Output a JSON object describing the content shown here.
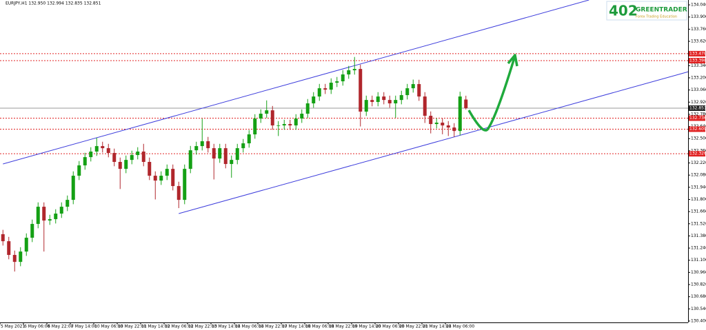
{
  "chart_data": {
    "type": "candlestick",
    "title": "EURJPY,H1  132.950 132.994 132.835 132.851",
    "x_labels": [
      "5 May 2021",
      "6 May 06:00",
      "6 May 22:00",
      "7 May 14:00",
      "10 May 06:00",
      "10 May 22:00",
      "11 May 14:00",
      "12 May 06:00",
      "12 May 22:00",
      "13 May 14:00",
      "14 May 06:00",
      "14 May 22:00",
      "17 May 14:00",
      "18 May 06:00",
      "18 May 22:00",
      "19 May 14:00",
      "20 May 06:00",
      "20 May 22:00",
      "21 May 14:00",
      "24 May 06:00"
    ],
    "up_color": "#14a014",
    "down_color": "#b0262c",
    "open": [
      131.4,
      131.319,
      131.161,
      131.081,
      131.2,
      131.359,
      131.518,
      131.716,
      131.557,
      131.573,
      131.637,
      131.716,
      131.795,
      132.073,
      132.192,
      132.287,
      132.351,
      132.414,
      132.39,
      132.335,
      132.232,
      132.152,
      132.255,
      132.311,
      132.351,
      132.232,
      132.073,
      132.017,
      132.073,
      132.152,
      131.954,
      131.795,
      132.152,
      132.366,
      132.414,
      132.47,
      132.39,
      132.271,
      132.39,
      132.208,
      132.255,
      132.39,
      132.446,
      132.549,
      132.731,
      132.787,
      132.826,
      132.652,
      132.652,
      132.668,
      132.652,
      132.731,
      132.787,
      132.906,
      132.985,
      133.08,
      133.064,
      133.144,
      133.16,
      133.239,
      133.287,
      133.302,
      132.811,
      132.945,
      132.922,
      132.985,
      132.945,
      132.906,
      132.945,
      133.001,
      133.08,
      133.128,
      132.985,
      132.763,
      132.668,
      132.684,
      132.652,
      132.628,
      132.588,
      132.95
    ],
    "high": [
      131.45,
      131.369,
      131.211,
      131.25,
      131.409,
      131.568,
      131.766,
      131.766,
      131.623,
      131.687,
      131.766,
      131.845,
      132.123,
      132.242,
      132.337,
      132.401,
      132.51,
      132.464,
      132.44,
      132.385,
      132.282,
      132.305,
      132.361,
      132.401,
      132.44,
      132.282,
      132.123,
      132.123,
      132.202,
      132.202,
      132.004,
      132.202,
      132.416,
      132.464,
      132.73,
      132.52,
      132.44,
      132.44,
      132.44,
      132.305,
      132.44,
      132.496,
      132.599,
      132.781,
      132.837,
      132.94,
      132.876,
      132.702,
      132.718,
      132.718,
      132.781,
      132.837,
      132.956,
      133.035,
      133.13,
      133.13,
      133.194,
      133.21,
      133.289,
      133.337,
      133.44,
      133.352,
      132.995,
      132.995,
      133.035,
      133.035,
      132.995,
      132.995,
      133.051,
      133.13,
      133.18,
      133.178,
      133.035,
      132.813,
      132.734,
      132.734,
      132.702,
      132.678,
      133.04,
      132.994
    ],
    "low": [
      131.269,
      131.111,
      130.97,
      131.031,
      131.15,
      131.309,
      131.468,
      131.2,
      131.507,
      131.523,
      131.587,
      131.666,
      131.745,
      132.023,
      132.142,
      132.237,
      132.301,
      132.34,
      132.285,
      132.182,
      131.92,
      132.102,
      132.205,
      132.261,
      132.182,
      132.023,
      131.8,
      131.967,
      132.023,
      131.904,
      131.7,
      131.745,
      132.102,
      132.316,
      132.364,
      132.34,
      132.03,
      132.221,
      132.158,
      132.05,
      132.205,
      132.34,
      132.396,
      132.499,
      132.681,
      132.737,
      132.602,
      132.53,
      132.602,
      132.602,
      132.602,
      132.681,
      132.737,
      132.856,
      132.935,
      133.014,
      133.014,
      133.094,
      133.11,
      133.189,
      133.237,
      132.64,
      132.761,
      132.872,
      132.872,
      132.895,
      132.856,
      132.74,
      132.895,
      132.951,
      133.03,
      132.935,
      132.68,
      132.56,
      132.618,
      132.55,
      132.53,
      132.52,
      132.538,
      132.835
    ],
    "close": [
      131.319,
      131.161,
      131.081,
      131.2,
      131.359,
      131.518,
      131.716,
      131.557,
      131.573,
      131.637,
      131.716,
      131.795,
      132.073,
      132.192,
      132.287,
      132.351,
      132.414,
      132.39,
      132.335,
      132.232,
      132.152,
      132.255,
      132.311,
      132.351,
      132.232,
      132.073,
      132.017,
      132.073,
      132.152,
      131.954,
      131.795,
      132.152,
      132.366,
      132.414,
      132.47,
      132.39,
      132.271,
      132.39,
      132.208,
      132.255,
      132.39,
      132.446,
      132.549,
      132.731,
      132.787,
      132.826,
      132.652,
      132.652,
      132.668,
      132.652,
      132.731,
      132.787,
      132.906,
      132.985,
      133.08,
      133.064,
      133.144,
      133.16,
      133.239,
      133.287,
      133.302,
      132.811,
      132.945,
      132.922,
      132.985,
      132.945,
      132.906,
      132.945,
      133.001,
      133.08,
      133.128,
      132.985,
      132.763,
      132.668,
      132.684,
      132.652,
      132.628,
      132.588,
      132.985,
      132.851
    ],
    "ylim": [
      130.384,
      134.096
    ],
    "yticks": [
      {
        "value": 134.04,
        "label": "134.040"
      },
      {
        "value": 133.9,
        "label": "133.900"
      },
      {
        "value": 133.76,
        "label": "133.760"
      },
      {
        "value": 133.62,
        "label": "133.620"
      },
      {
        "value": 133.48,
        "label": "133.480"
      },
      {
        "value": 133.34,
        "label": "133.340"
      },
      {
        "value": 133.2,
        "label": "133.200"
      },
      {
        "value": 133.06,
        "label": "133.060"
      },
      {
        "value": 132.92,
        "label": "132.920"
      },
      {
        "value": 132.78,
        "label": "132.780"
      },
      {
        "value": 132.64,
        "label": "132.640"
      },
      {
        "value": 132.5,
        "label": "132.500"
      },
      {
        "value": 132.36,
        "label": "132.360"
      },
      {
        "value": 132.22,
        "label": "132.220"
      },
      {
        "value": 132.08,
        "label": "132.080"
      },
      {
        "value": 131.94,
        "label": "131.940"
      },
      {
        "value": 131.8,
        "label": "131.800"
      },
      {
        "value": 131.66,
        "label": "131.660"
      },
      {
        "value": 131.52,
        "label": "131.520"
      },
      {
        "value": 131.38,
        "label": "131.380"
      },
      {
        "value": 131.24,
        "label": "131.240"
      },
      {
        "value": 131.1,
        "label": "131.100"
      },
      {
        "value": 130.96,
        "label": "130.960"
      },
      {
        "value": 130.82,
        "label": "130.820"
      },
      {
        "value": 130.68,
        "label": "130.680"
      },
      {
        "value": 130.54,
        "label": "130.540"
      },
      {
        "value": 130.4,
        "label": "130.400"
      }
    ],
    "levels": [
      {
        "value": 133.478,
        "color": "#e02020"
      },
      {
        "value": 133.398,
        "color": "#e02020"
      },
      {
        "value": 132.736,
        "color": "#e02020"
      },
      {
        "value": 132.609,
        "color": "#e02020"
      },
      {
        "value": 132.326,
        "color": "#e02020"
      }
    ],
    "current_price": {
      "value": 132.851,
      "color": "#222222"
    },
    "trendlines": [
      {
        "start_index": 0,
        "start_price": 132.208,
        "end_index": 100,
        "end_price": 134.096,
        "color": "#3c3cdc"
      },
      {
        "start_index": 30,
        "start_price": 131.637,
        "end_index": 117,
        "end_price": 133.271,
        "color": "#3c3cdc"
      }
    ]
  },
  "logo": {
    "number": "402",
    "brand": "GREENTRADER",
    "tagline": "Forex Trading Education"
  }
}
